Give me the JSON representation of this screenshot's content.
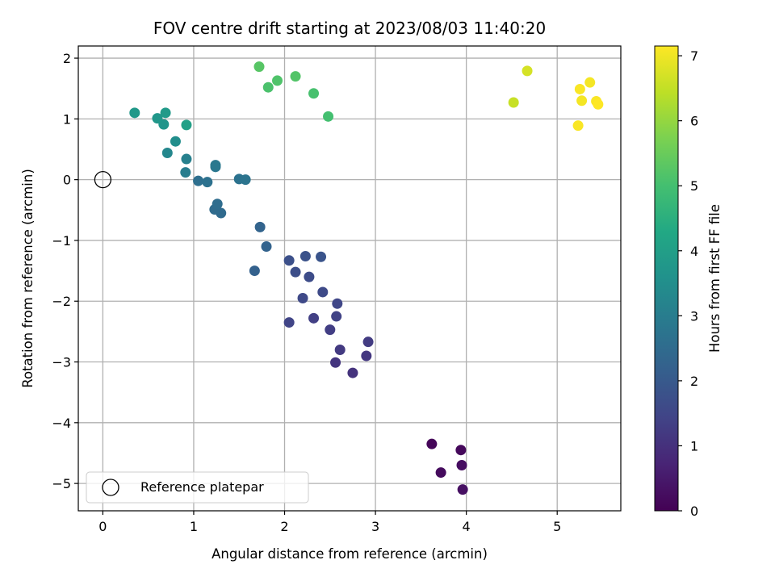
{
  "chart_data": {
    "type": "scatter",
    "title": "FOV centre drift starting at 2023/08/03 11:40:20",
    "xlabel": "Angular distance from reference (arcmin)",
    "ylabel": "Rotation from reference (arcmin)",
    "xlim": [
      -0.27,
      5.7
    ],
    "ylim": [
      -5.45,
      2.2
    ],
    "xticks": [
      0,
      1,
      2,
      3,
      4,
      5
    ],
    "yticks": [
      -5,
      -4,
      -3,
      -2,
      -1,
      0,
      1,
      2
    ],
    "grid": true,
    "legend": {
      "placement": "lower-left",
      "label": "Reference platepar"
    },
    "reference_point": {
      "x": 0,
      "y": 0
    },
    "colorbar": {
      "label": "Hours from first FF file",
      "range": [
        0,
        7.15
      ],
      "ticks": [
        0,
        1,
        2,
        3,
        4,
        5,
        6,
        7
      ],
      "colormap": "viridis"
    },
    "series": [
      {
        "points": [
          {
            "x": 3.62,
            "y": -4.35,
            "c": 0.1
          },
          {
            "x": 3.94,
            "y": -4.45,
            "c": 0.15
          },
          {
            "x": 3.72,
            "y": -4.82,
            "c": 0.2
          },
          {
            "x": 3.95,
            "y": -4.7,
            "c": 0.25
          },
          {
            "x": 3.96,
            "y": -5.1,
            "c": 0.3
          },
          {
            "x": 2.75,
            "y": -3.18,
            "c": 1.05
          },
          {
            "x": 2.56,
            "y": -3.01,
            "c": 1.1
          },
          {
            "x": 2.9,
            "y": -2.9,
            "c": 1.15
          },
          {
            "x": 2.61,
            "y": -2.8,
            "c": 1.2
          },
          {
            "x": 2.92,
            "y": -2.67,
            "c": 1.25
          },
          {
            "x": 2.5,
            "y": -2.47,
            "c": 1.3
          },
          {
            "x": 2.32,
            "y": -2.28,
            "c": 1.35
          },
          {
            "x": 2.57,
            "y": -2.25,
            "c": 1.4
          },
          {
            "x": 2.05,
            "y": -2.35,
            "c": 1.45
          },
          {
            "x": 2.58,
            "y": -2.04,
            "c": 1.5
          },
          {
            "x": 2.2,
            "y": -1.95,
            "c": 1.55
          },
          {
            "x": 2.42,
            "y": -1.85,
            "c": 1.6
          },
          {
            "x": 2.27,
            "y": -1.6,
            "c": 1.65
          },
          {
            "x": 2.12,
            "y": -1.52,
            "c": 1.7
          },
          {
            "x": 2.05,
            "y": -1.33,
            "c": 1.75
          },
          {
            "x": 2.23,
            "y": -1.26,
            "c": 1.8
          },
          {
            "x": 2.4,
            "y": -1.27,
            "c": 1.85
          },
          {
            "x": 1.67,
            "y": -1.5,
            "c": 2.2
          },
          {
            "x": 1.8,
            "y": -1.1,
            "c": 2.25
          },
          {
            "x": 1.73,
            "y": -0.78,
            "c": 2.3
          },
          {
            "x": 1.3,
            "y": -0.55,
            "c": 2.45
          },
          {
            "x": 1.23,
            "y": -0.49,
            "c": 2.5
          },
          {
            "x": 1.26,
            "y": -0.4,
            "c": 2.55
          },
          {
            "x": 1.05,
            "y": -0.02,
            "c": 2.6
          },
          {
            "x": 1.15,
            "y": -0.04,
            "c": 2.65
          },
          {
            "x": 1.5,
            "y": 0.01,
            "c": 2.7
          },
          {
            "x": 1.57,
            "y": 0.0,
            "c": 2.75
          },
          {
            "x": 1.24,
            "y": 0.21,
            "c": 2.8
          },
          {
            "x": 1.24,
            "y": 0.24,
            "c": 2.85
          },
          {
            "x": 0.91,
            "y": 0.12,
            "c": 3.0
          },
          {
            "x": 0.92,
            "y": 0.34,
            "c": 3.1
          },
          {
            "x": 0.71,
            "y": 0.44,
            "c": 3.3
          },
          {
            "x": 0.8,
            "y": 0.63,
            "c": 3.5
          },
          {
            "x": 0.67,
            "y": 0.91,
            "c": 3.7
          },
          {
            "x": 0.6,
            "y": 1.01,
            "c": 3.75
          },
          {
            "x": 0.35,
            "y": 1.1,
            "c": 3.8
          },
          {
            "x": 0.69,
            "y": 1.1,
            "c": 3.85
          },
          {
            "x": 0.92,
            "y": 0.9,
            "c": 4.05
          },
          {
            "x": 2.48,
            "y": 1.04,
            "c": 5.0
          },
          {
            "x": 2.32,
            "y": 1.42,
            "c": 5.05
          },
          {
            "x": 1.82,
            "y": 1.52,
            "c": 5.1
          },
          {
            "x": 1.92,
            "y": 1.63,
            "c": 5.15
          },
          {
            "x": 2.12,
            "y": 1.7,
            "c": 5.2
          },
          {
            "x": 1.72,
            "y": 1.86,
            "c": 5.25
          },
          {
            "x": 4.52,
            "y": 1.27,
            "c": 6.55
          },
          {
            "x": 4.67,
            "y": 1.79,
            "c": 6.7
          },
          {
            "x": 5.23,
            "y": 0.89,
            "c": 7.1
          },
          {
            "x": 5.27,
            "y": 1.3,
            "c": 7.05
          },
          {
            "x": 5.25,
            "y": 1.49,
            "c": 7.1
          },
          {
            "x": 5.36,
            "y": 1.6,
            "c": 7.05
          },
          {
            "x": 5.43,
            "y": 1.29,
            "c": 7.1
          },
          {
            "x": 5.45,
            "y": 1.24,
            "c": 7.15
          }
        ]
      }
    ]
  }
}
